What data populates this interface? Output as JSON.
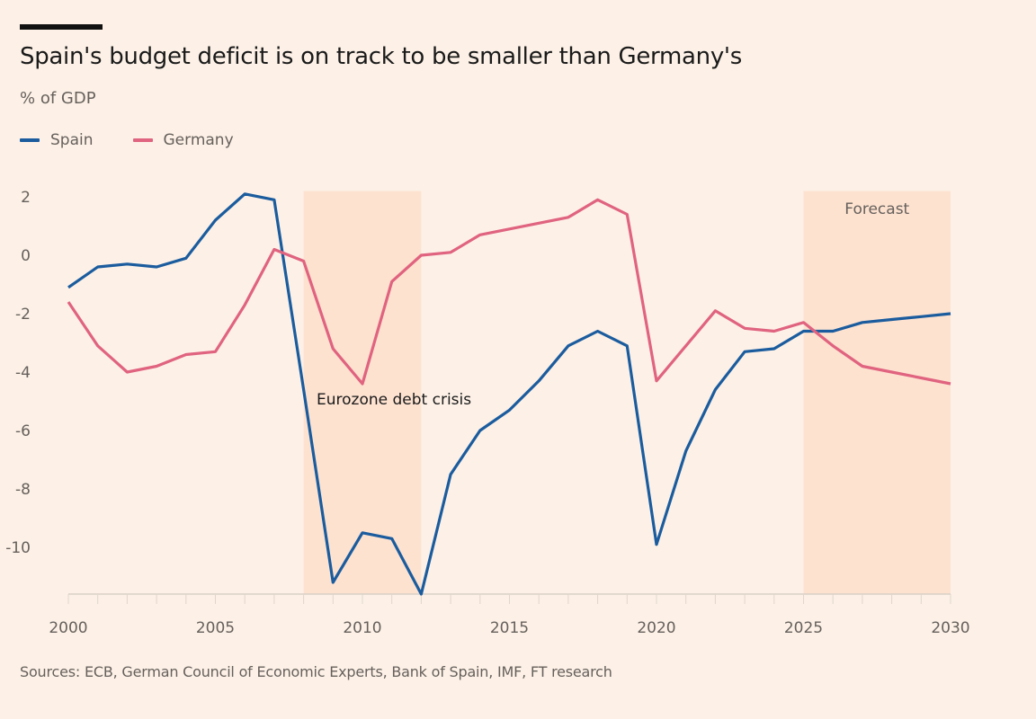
{
  "chart_data": {
    "type": "line",
    "title": "Spain's budget deficit is on track to be smaller than Germany's",
    "subtitle": "% of GDP",
    "source": "Sources: ECB, German Council of Economic Experts, Bank of Spain, IMF, FT research",
    "x": [
      2000,
      2001,
      2002,
      2003,
      2004,
      2005,
      2006,
      2007,
      2008,
      2009,
      2010,
      2011,
      2012,
      2013,
      2014,
      2015,
      2016,
      2017,
      2018,
      2019,
      2020,
      2021,
      2022,
      2023,
      2024,
      2025,
      2026,
      2027,
      2028,
      2029,
      2030
    ],
    "series": [
      {
        "name": "Spain",
        "color": "#1b5c9e",
        "values": [
          -1.1,
          -0.4,
          -0.3,
          -0.4,
          -0.1,
          1.2,
          2.1,
          1.9,
          -4.6,
          -11.2,
          -9.5,
          -9.7,
          -11.6,
          -7.5,
          -6.0,
          -5.3,
          -4.3,
          -3.1,
          -2.6,
          -3.1,
          -9.9,
          -6.7,
          -4.6,
          -3.3,
          -3.2,
          -2.6,
          -2.6,
          -2.3,
          -2.2,
          -2.1,
          -2.0
        ]
      },
      {
        "name": "Germany",
        "color": "#e0637f",
        "values": [
          -1.6,
          -3.1,
          -4.0,
          -3.8,
          -3.4,
          -3.3,
          -1.7,
          0.2,
          -0.2,
          -3.2,
          -4.4,
          -0.9,
          0.0,
          0.1,
          0.7,
          0.9,
          1.1,
          1.3,
          1.9,
          1.4,
          -4.3,
          -3.1,
          -1.9,
          -2.5,
          -2.6,
          -2.3,
          -3.1,
          -3.8,
          -4.0,
          -4.2,
          -4.4
        ]
      }
    ],
    "xlim": [
      2000,
      2030
    ],
    "ylim": [
      -11.6,
      2.2
    ],
    "xticks": [
      "2000",
      "2005",
      "2010",
      "2015",
      "2020",
      "2025",
      "2030"
    ],
    "yticks": [
      "2",
      "0",
      "-2",
      "-4",
      "-6",
      "-8",
      "-10"
    ],
    "grid": false,
    "legend_placement": "top-left",
    "shaded_regions": [
      {
        "from": 2008,
        "to": 2012,
        "label": "Eurozone debt crisis",
        "color": "#fde2d0"
      },
      {
        "from": 2025,
        "to": 2030,
        "label": "Forecast",
        "color": "#fde2d0"
      }
    ],
    "background": "#fdf1e7"
  }
}
